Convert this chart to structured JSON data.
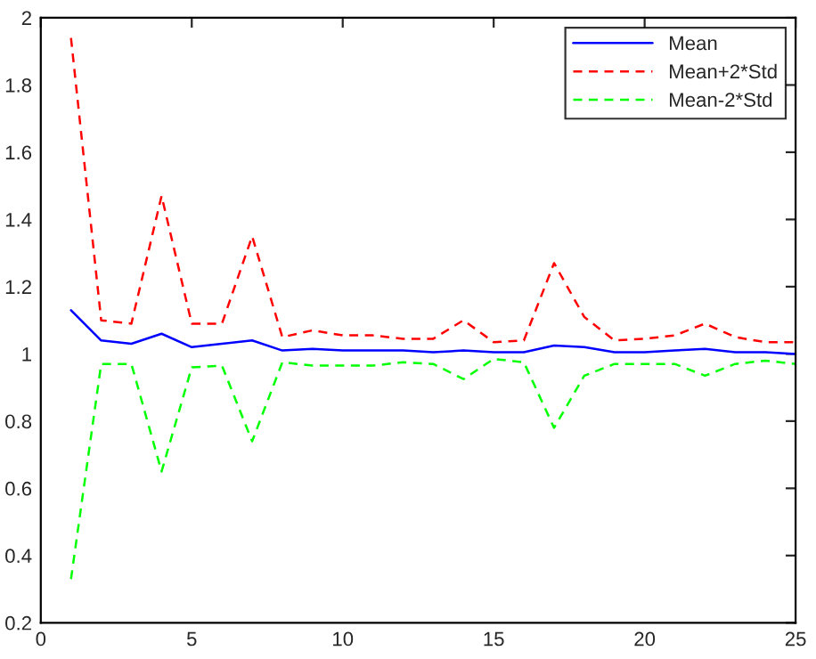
{
  "chart_data": {
    "type": "line",
    "x": [
      1,
      2,
      3,
      4,
      5,
      6,
      7,
      8,
      9,
      10,
      11,
      12,
      13,
      14,
      15,
      16,
      17,
      18,
      19,
      20,
      21,
      22,
      23,
      24,
      25
    ],
    "series": [
      {
        "name": "Mean",
        "color": "#0000ff",
        "line_style": "solid",
        "values": [
          1.13,
          1.04,
          1.03,
          1.06,
          1.02,
          1.03,
          1.04,
          1.01,
          1.015,
          1.01,
          1.01,
          1.01,
          1.005,
          1.01,
          1.005,
          1.005,
          1.025,
          1.02,
          1.005,
          1.005,
          1.01,
          1.015,
          1.005,
          1.005,
          1.0
        ]
      },
      {
        "name": "Mean+2*Std",
        "color": "#ff0000",
        "line_style": "dashed",
        "values": [
          1.94,
          1.1,
          1.09,
          1.47,
          1.09,
          1.09,
          1.35,
          1.05,
          1.07,
          1.055,
          1.055,
          1.045,
          1.045,
          1.1,
          1.035,
          1.04,
          1.27,
          1.11,
          1.04,
          1.045,
          1.055,
          1.09,
          1.05,
          1.035,
          1.035
        ]
      },
      {
        "name": "Mean-2*Std",
        "color": "#00ff00",
        "line_style": "dashed",
        "values": [
          0.33,
          0.97,
          0.97,
          0.65,
          0.96,
          0.965,
          0.74,
          0.975,
          0.965,
          0.965,
          0.965,
          0.975,
          0.97,
          0.925,
          0.985,
          0.975,
          0.78,
          0.935,
          0.97,
          0.97,
          0.97,
          0.935,
          0.97,
          0.98,
          0.97
        ]
      }
    ],
    "xlim": [
      0,
      25
    ],
    "xticks": [
      0,
      5,
      10,
      15,
      20,
      25
    ],
    "ylim": [
      0.2,
      2
    ],
    "yticks": [
      0.2,
      0.4,
      0.6,
      0.8,
      1,
      1.2,
      1.4,
      1.6,
      1.8,
      2
    ],
    "grid": false,
    "legend": "top right",
    "marker": "none"
  }
}
